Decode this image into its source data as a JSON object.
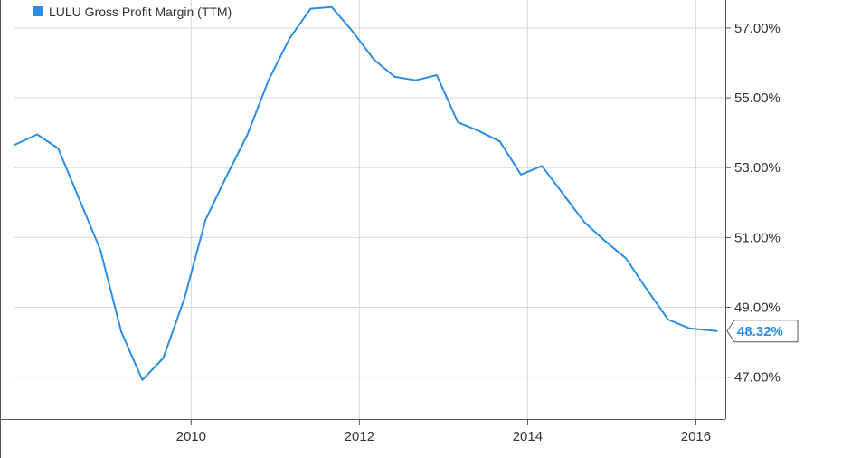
{
  "chart_data": {
    "type": "line",
    "legend": {
      "label": "LULU Gross Profit Margin (TTM)",
      "placement": "top-left"
    },
    "colors": {
      "line": "#2b8ee6",
      "highlight": "#8ec6f2",
      "grid": "#d9d9d9",
      "axis": "#555555",
      "callout_text": "#2b8ee6"
    },
    "x_ticks": [
      {
        "value": 2010,
        "label": "2010"
      },
      {
        "value": 2012,
        "label": "2012"
      },
      {
        "value": 2014,
        "label": "2014"
      },
      {
        "value": 2016,
        "label": "2016"
      }
    ],
    "y_ticks": [
      {
        "value": 47,
        "label": "47.00%"
      },
      {
        "value": 49,
        "label": "49.00%"
      },
      {
        "value": 51,
        "label": "51.00%"
      },
      {
        "value": 53,
        "label": "53.00%"
      },
      {
        "value": 55,
        "label": "55.00%"
      },
      {
        "value": 57,
        "label": "57.00%"
      }
    ],
    "xlim": [
      2007.9,
      2016.35
    ],
    "ylim": [
      45.8,
      57.8
    ],
    "grid": true,
    "y_axis_side": "right",
    "series": [
      {
        "name": "LULU Gross Profit Margin (TTM)",
        "points": [
          [
            2007.9,
            53.65
          ],
          [
            2008.17,
            53.95
          ],
          [
            2008.42,
            53.55
          ],
          [
            2008.67,
            52.1
          ],
          [
            2008.92,
            50.65
          ],
          [
            2009.17,
            48.3
          ],
          [
            2009.42,
            46.92
          ],
          [
            2009.67,
            47.55
          ],
          [
            2009.92,
            49.25
          ],
          [
            2010.17,
            51.5
          ],
          [
            2010.42,
            52.75
          ],
          [
            2010.67,
            53.95
          ],
          [
            2010.92,
            55.5
          ],
          [
            2011.17,
            56.7
          ],
          [
            2011.42,
            57.55
          ],
          [
            2011.67,
            57.6
          ],
          [
            2011.92,
            56.9
          ],
          [
            2012.17,
            56.1
          ],
          [
            2012.42,
            55.6
          ],
          [
            2012.67,
            55.5
          ],
          [
            2012.92,
            55.65
          ],
          [
            2013.17,
            54.3
          ],
          [
            2013.42,
            54.05
          ],
          [
            2013.67,
            53.75
          ],
          [
            2013.92,
            52.8
          ],
          [
            2014.17,
            53.05
          ],
          [
            2014.42,
            52.25
          ],
          [
            2014.67,
            51.45
          ],
          [
            2014.92,
            50.9
          ],
          [
            2015.17,
            50.4
          ],
          [
            2015.42,
            49.5
          ],
          [
            2015.67,
            48.65
          ],
          [
            2015.92,
            48.4
          ],
          [
            2016.25,
            48.32
          ]
        ]
      }
    ],
    "last_value_label": "48.32%"
  }
}
